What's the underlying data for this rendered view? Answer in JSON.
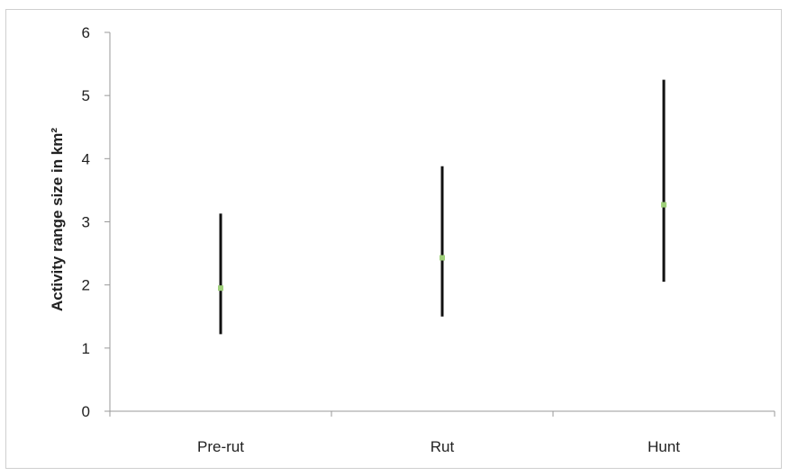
{
  "chart_data": {
    "type": "scatter",
    "title": "",
    "xlabel": "",
    "ylabel": "Activity range size in km²",
    "categories": [
      "Pre-rut",
      "Rut",
      "Hunt"
    ],
    "series": [
      {
        "values": [
          1.95,
          2.43,
          3.27
        ],
        "lower": [
          1.22,
          1.5,
          2.05
        ],
        "upper": [
          3.13,
          3.88,
          5.25
        ]
      }
    ],
    "ylim": [
      0,
      6
    ],
    "yticks": [
      0,
      1,
      2,
      3,
      4,
      5,
      6
    ],
    "grid": false,
    "legend": "none",
    "marker_color": "#9fd07a",
    "errorbar_color": "#111111",
    "axis_color": "#9a9a9a"
  }
}
